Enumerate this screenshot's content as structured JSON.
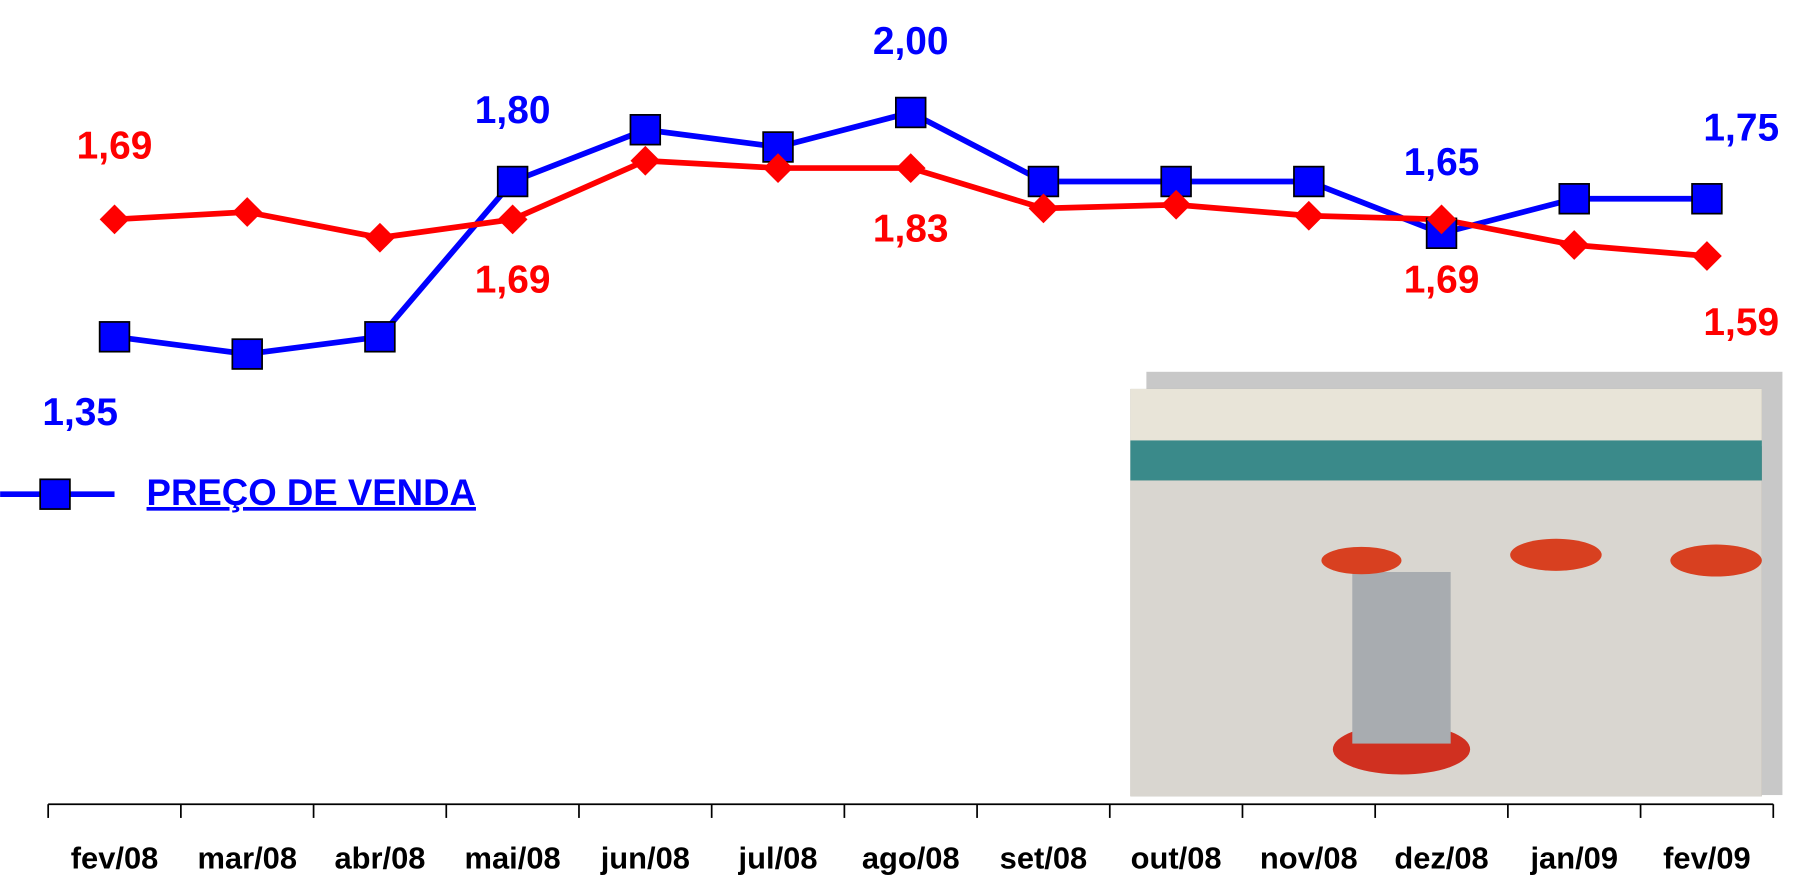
{
  "chart_data": {
    "type": "line",
    "categories": [
      "fev/08",
      "mar/08",
      "abr/08",
      "mai/08",
      "jun/08",
      "jul/08",
      "ago/08",
      "set/08",
      "out/08",
      "nov/08",
      "dez/08",
      "jan/09",
      "fev/09"
    ],
    "ylim": [
      1.0,
      2.2
    ],
    "y2lim": [
      1.04,
      2.17
    ],
    "legend": "left",
    "series": [
      {
        "name": "PREÇO DE VENDA",
        "color": "#0000ff",
        "marker": "square",
        "values": [
          1.35,
          1.3,
          1.35,
          1.8,
          1.95,
          1.9,
          2.0,
          1.8,
          1.8,
          1.8,
          1.65,
          1.75,
          1.75
        ],
        "value_labels": [
          "1,35",
          null,
          null,
          "1,80",
          null,
          null,
          "2,00",
          null,
          null,
          null,
          "1,65",
          null,
          "1,75"
        ]
      },
      {
        "color": "#ff0000",
        "marker": "diamond",
        "axis": "y2",
        "values": [
          1.69,
          1.71,
          1.64,
          1.69,
          1.85,
          1.83,
          1.83,
          1.72,
          1.73,
          1.7,
          1.69,
          1.62,
          1.59
        ],
        "value_labels": [
          "1,69",
          null,
          null,
          "1,69",
          null,
          null,
          "1,83",
          null,
          null,
          null,
          "1,69",
          null,
          "1,59"
        ]
      }
    ]
  }
}
